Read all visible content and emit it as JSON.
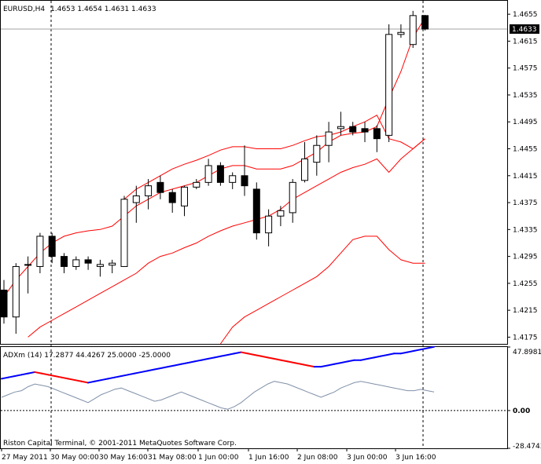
{
  "header": {
    "symbol": "EURUSD,H4",
    "ohlc": "1.4653 1.4654 1.4631 1.4633"
  },
  "copyright": "Riston Capital Terminal, © 2001-2011 MetaQuotes Software Corp.",
  "colors": {
    "bull_fill": "#ffffff",
    "bear_fill": "#000000",
    "envelope": "#ff0000",
    "adx_up": "#0000ff",
    "adx_down": "#ff0000",
    "adx_line": "#8090a8",
    "grid": "#000000"
  },
  "chart_data": [
    {
      "type": "candlestick",
      "ylim": [
        1.4165,
        1.4675
      ],
      "y_ticks": [
        "1.4655",
        "1.4615",
        "1.4575",
        "1.4535",
        "1.4495",
        "1.4455",
        "1.4415",
        "1.4375",
        "1.4335",
        "1.4295",
        "1.4255",
        "1.4215",
        "1.4175"
      ],
      "current_price": "1.4633",
      "candles": [
        [
          1.4245,
          1.426,
          1.4195,
          1.4205
        ],
        [
          1.4205,
          1.4285,
          1.418,
          1.428
        ],
        [
          1.4283,
          1.4295,
          1.424,
          1.4283
        ],
        [
          1.428,
          1.433,
          1.427,
          1.4325
        ],
        [
          1.4325,
          1.433,
          1.4285,
          1.4295
        ],
        [
          1.4295,
          1.43,
          1.427,
          1.428
        ],
        [
          1.428,
          1.4295,
          1.4275,
          1.429
        ],
        [
          1.429,
          1.4295,
          1.4275,
          1.4285
        ],
        [
          1.428,
          1.429,
          1.4265,
          1.4283
        ],
        [
          1.4282,
          1.429,
          1.427,
          1.4285
        ],
        [
          1.428,
          1.4385,
          1.428,
          1.438
        ],
        [
          1.4375,
          1.44,
          1.4345,
          1.4385
        ],
        [
          1.4385,
          1.441,
          1.4365,
          1.44
        ],
        [
          1.4405,
          1.4415,
          1.438,
          1.439
        ],
        [
          1.439,
          1.4395,
          1.436,
          1.4375
        ],
        [
          1.437,
          1.44,
          1.4355,
          1.4398
        ],
        [
          1.4398,
          1.441,
          1.4395,
          1.4405
        ],
        [
          1.4405,
          1.444,
          1.44,
          1.443
        ],
        [
          1.443,
          1.4435,
          1.44,
          1.4405
        ],
        [
          1.4405,
          1.442,
          1.4395,
          1.4415
        ],
        [
          1.4415,
          1.446,
          1.4385,
          1.44
        ],
        [
          1.4395,
          1.4405,
          1.432,
          1.433
        ],
        [
          1.433,
          1.4365,
          1.431,
          1.4355
        ],
        [
          1.4355,
          1.437,
          1.434,
          1.4363
        ],
        [
          1.436,
          1.441,
          1.4345,
          1.4405
        ],
        [
          1.4408,
          1.4465,
          1.4405,
          1.444
        ],
        [
          1.4435,
          1.4475,
          1.4415,
          1.446
        ],
        [
          1.446,
          1.4495,
          1.4435,
          1.448
        ],
        [
          1.4485,
          1.451,
          1.4475,
          1.4488
        ],
        [
          1.4488,
          1.4495,
          1.4475,
          1.448
        ],
        [
          1.4485,
          1.4495,
          1.4465,
          1.448
        ],
        [
          1.4485,
          1.449,
          1.445,
          1.447
        ],
        [
          1.4475,
          1.464,
          1.4465,
          1.4625
        ],
        [
          1.4625,
          1.464,
          1.462,
          1.4628
        ],
        [
          1.461,
          1.466,
          1.4605,
          1.4653
        ],
        [
          1.4653,
          1.4654,
          1.4631,
          1.4633
        ]
      ],
      "envelope_mid": [
        1.4235,
        1.426,
        1.428,
        1.43,
        1.4315,
        1.4325,
        1.433,
        1.4333,
        1.4335,
        1.434,
        1.4355,
        1.437,
        1.438,
        1.439,
        1.4395,
        1.44,
        1.4405,
        1.4415,
        1.4425,
        1.443,
        1.443,
        1.4425,
        1.4425,
        1.4425,
        1.443,
        1.444,
        1.445,
        1.4465,
        1.4475,
        1.4478,
        1.448,
        1.4488,
        1.453,
        1.457,
        1.462,
        1.465
      ],
      "envelope_upper": [
        null,
        null,
        null,
        null,
        null,
        null,
        null,
        null,
        null,
        null,
        1.438,
        1.4395,
        1.4405,
        1.4415,
        1.4425,
        1.4432,
        1.4438,
        1.4445,
        1.4453,
        1.4458,
        1.4458,
        1.4455,
        1.4455,
        1.4455,
        1.446,
        1.4467,
        1.4473,
        1.4475,
        1.448,
        1.4488,
        1.4495,
        1.4505,
        1.447,
        1.4465,
        1.4455,
        1.447
      ],
      "envelope_lower": [
        null,
        null,
        1.4175,
        1.419,
        1.42,
        1.421,
        1.422,
        1.423,
        1.424,
        1.425,
        1.426,
        1.427,
        1.4285,
        1.4295,
        1.43,
        1.4308,
        1.4315,
        1.4325,
        1.4333,
        1.434,
        1.4345,
        1.435,
        1.4355,
        1.4365,
        1.438,
        1.439,
        1.44,
        1.441,
        1.442,
        1.4427,
        1.4432,
        1.444,
        1.442,
        1.444,
        1.4455,
        1.447
      ],
      "envelope_deep": [
        null,
        null,
        null,
        null,
        null,
        null,
        null,
        null,
        null,
        null,
        null,
        null,
        null,
        null,
        null,
        null,
        null,
        null,
        1.4165,
        1.419,
        1.4205,
        1.4215,
        1.4225,
        1.4235,
        1.4245,
        1.4255,
        1.4265,
        1.428,
        1.43,
        1.432,
        1.4325,
        1.4325,
        1.4305,
        1.429,
        1.4285,
        1.4285
      ]
    },
    {
      "type": "line",
      "title": "ADXm (14) 17.2877 44.4267 25.0000 -25.0000",
      "ylim": [
        -28.4743,
        47.8981
      ],
      "y_ticks": [
        "47.8981",
        "0.00",
        "-28.4743"
      ],
      "series": [
        {
          "values": [
            24,
            25,
            26,
            27,
            28,
            29,
            28,
            27,
            26,
            25,
            24,
            23,
            22,
            21,
            22,
            23,
            24,
            25,
            26,
            27,
            28,
            29,
            30,
            31,
            32,
            33,
            34,
            35,
            36,
            37,
            38,
            39,
            40,
            41,
            42,
            43,
            44,
            43,
            42,
            41,
            40,
            39,
            38,
            37,
            36,
            35,
            34,
            33,
            33,
            34,
            35,
            36,
            37,
            38,
            38,
            39,
            40,
            41,
            42,
            43,
            43,
            44,
            45,
            46,
            47,
            48
          ]
        },
        {
          "values": [
            10,
            12,
            14,
            15,
            18,
            20,
            19,
            18,
            16,
            14,
            12,
            10,
            8,
            6,
            9,
            12,
            14,
            16,
            17,
            15,
            13,
            11,
            9,
            7,
            8,
            10,
            12,
            14,
            12,
            10,
            8,
            6,
            4,
            2,
            1,
            3,
            6,
            10,
            14,
            17,
            20,
            22,
            21,
            20,
            18,
            16,
            14,
            12,
            10,
            12,
            14,
            17,
            19,
            21,
            22,
            21,
            20,
            19,
            18,
            17,
            16,
            15,
            15,
            16,
            15,
            14
          ]
        }
      ]
    }
  ],
  "x_ticks": [
    "27 May 2011",
    "30 May 00:00",
    "30 May 16:00",
    "31 May 08:00",
    "1 Jun 00:00",
    "1 Jun 16:00",
    "2 Jun 08:00",
    "3 Jun 00:00",
    "3 Jun 16:00"
  ]
}
